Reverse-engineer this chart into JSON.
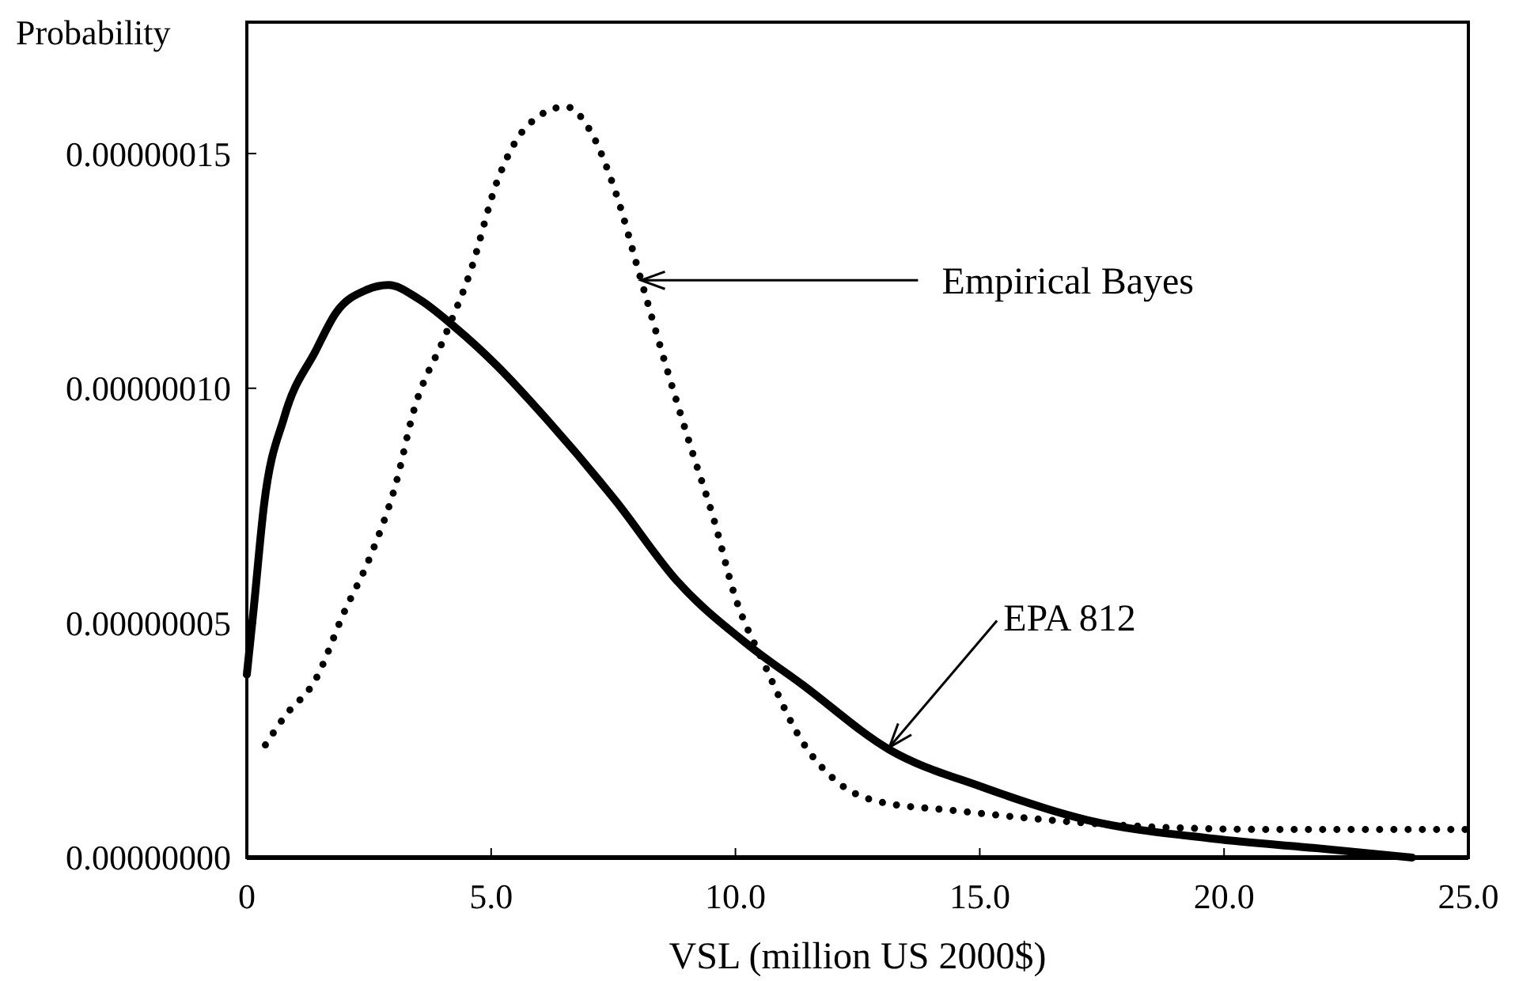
{
  "chart_data": {
    "type": "line",
    "xlabel": "VSL (million US 2000$)",
    "ylabel": "Probability",
    "xlim": [
      0,
      25
    ],
    "ylim": [
      0,
      1.78e-07
    ],
    "xticks": [
      {
        "value": 0,
        "label": "0"
      },
      {
        "value": 5,
        "label": "5.0"
      },
      {
        "value": 10,
        "label": "10.0"
      },
      {
        "value": 15,
        "label": "15.0"
      },
      {
        "value": 20,
        "label": "20.0"
      },
      {
        "value": 25,
        "label": "25.0"
      }
    ],
    "yticks": [
      {
        "value": 0,
        "label": "0.00000000"
      },
      {
        "value": 5e-08,
        "label": "0.00000005"
      },
      {
        "value": 1e-07,
        "label": "0.00000010"
      },
      {
        "value": 1.5e-07,
        "label": "0.00000015"
      }
    ],
    "grid": false,
    "marker": "none",
    "series": [
      {
        "color": "#000000",
        "line_style": "solid",
        "x": [
          0,
          0.14,
          0.35,
          0.77,
          1.41,
          1.82,
          2.46,
          2.9,
          3.52,
          4.26,
          5.1,
          6.17,
          7.55,
          8.8,
          10.3,
          11.35,
          13.15,
          15.06,
          17.2,
          19.8,
          21.9,
          23.85
        ],
        "values": [
          3.9e-08,
          5.3e-08,
          7.5e-08,
          9.4e-08,
          1.08e-07,
          1.16e-07,
          1.21e-07,
          1.22e-07,
          1.19e-07,
          1.13e-07,
          1.05e-07,
          9.3e-08,
          7.6e-08,
          5.9e-08,
          4.5e-08,
          3.7e-08,
          2.3e-08,
          1.5e-08,
          8e-09,
          4e-09,
          2e-09,
          0
        ]
      },
      {
        "color": "#000000",
        "line_style": "dotted",
        "x": [
          0.38,
          0.77,
          1.41,
          1.98,
          2.52,
          3.06,
          3.41,
          4.05,
          4.58,
          5.12,
          5.75,
          6.53,
          7.02,
          7.54,
          8.07,
          8.6,
          9.13,
          9.56,
          9.98,
          10.6,
          11.35,
          12.1,
          12.9,
          14.5,
          17.7,
          20.9,
          25
        ],
        "values": [
          2.4e-08,
          3e-08,
          3.8e-08,
          5.2e-08,
          6.4e-08,
          8e-08,
          9.5e-08,
          1.11e-07,
          1.25e-07,
          1.44e-07,
          1.56e-07,
          1.6e-07,
          1.55e-07,
          1.42e-07,
          1.23e-07,
          1.04e-07,
          8.6e-08,
          7.2e-08,
          5.6e-08,
          4.1e-08,
          2.5e-08,
          1.6e-08,
          1.2e-08,
          1e-08,
          7e-09,
          6e-09,
          6e-09
        ]
      }
    ],
    "annotations": [
      {
        "text": "Empirical Bayes",
        "x": 8.07,
        "y": 1.23e-07
      },
      {
        "text": "EPA 812",
        "x": 13.15,
        "y": 2.35e-08
      }
    ]
  }
}
